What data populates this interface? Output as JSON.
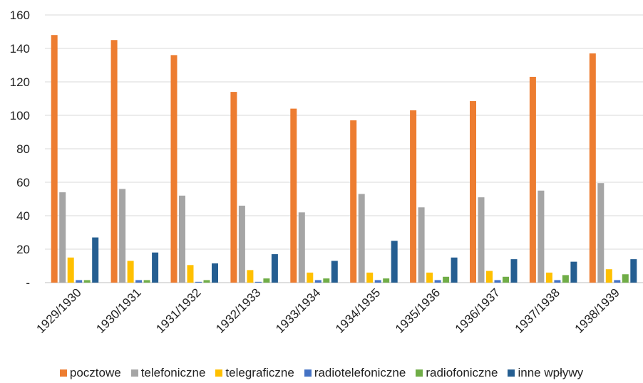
{
  "chart_data": {
    "type": "bar",
    "categories": [
      "1929/1930",
      "1930/1931",
      "1931/1932",
      "1932/1933",
      "1933/1934",
      "1934/1935",
      "1935/1936",
      "1936/1937",
      "1937/1938",
      "1938/1939"
    ],
    "series": [
      {
        "name": "pocztowe",
        "color": "#ED7D31",
        "values": [
          148,
          145,
          136,
          114,
          104,
          97,
          103,
          108.5,
          123,
          137
        ]
      },
      {
        "name": "telefoniczne",
        "color": "#A5A5A5",
        "values": [
          54,
          56,
          52,
          46,
          42,
          53,
          45,
          51,
          55,
          59.5
        ]
      },
      {
        "name": "telegraficzne",
        "color": "#FFC000",
        "values": [
          15,
          13,
          10.5,
          7.5,
          6,
          6,
          6,
          7,
          6,
          8
        ]
      },
      {
        "name": "radiotelefoniczne",
        "color": "#4472C4",
        "values": [
          1.5,
          1.5,
          0.5,
          0.5,
          1.5,
          1.5,
          1.5,
          1.5,
          1.5,
          1.5
        ]
      },
      {
        "name": "radiofoniczne",
        "color": "#70AD47",
        "values": [
          1.5,
          1.5,
          1.5,
          2.5,
          2.5,
          2.5,
          3.5,
          3.5,
          4.5,
          5
        ]
      },
      {
        "name": "inne wpływy",
        "color": "#255E91",
        "values": [
          27,
          18,
          11.5,
          17,
          13,
          25,
          15,
          14,
          12.5,
          14
        ]
      }
    ],
    "yticks": [
      "-",
      "20",
      "40",
      "60",
      "80",
      "100",
      "120",
      "140",
      "160"
    ],
    "ylim": [
      0,
      160
    ],
    "title": "",
    "xlabel": "",
    "ylabel": "",
    "grid": true,
    "legend_position": "bottom"
  }
}
